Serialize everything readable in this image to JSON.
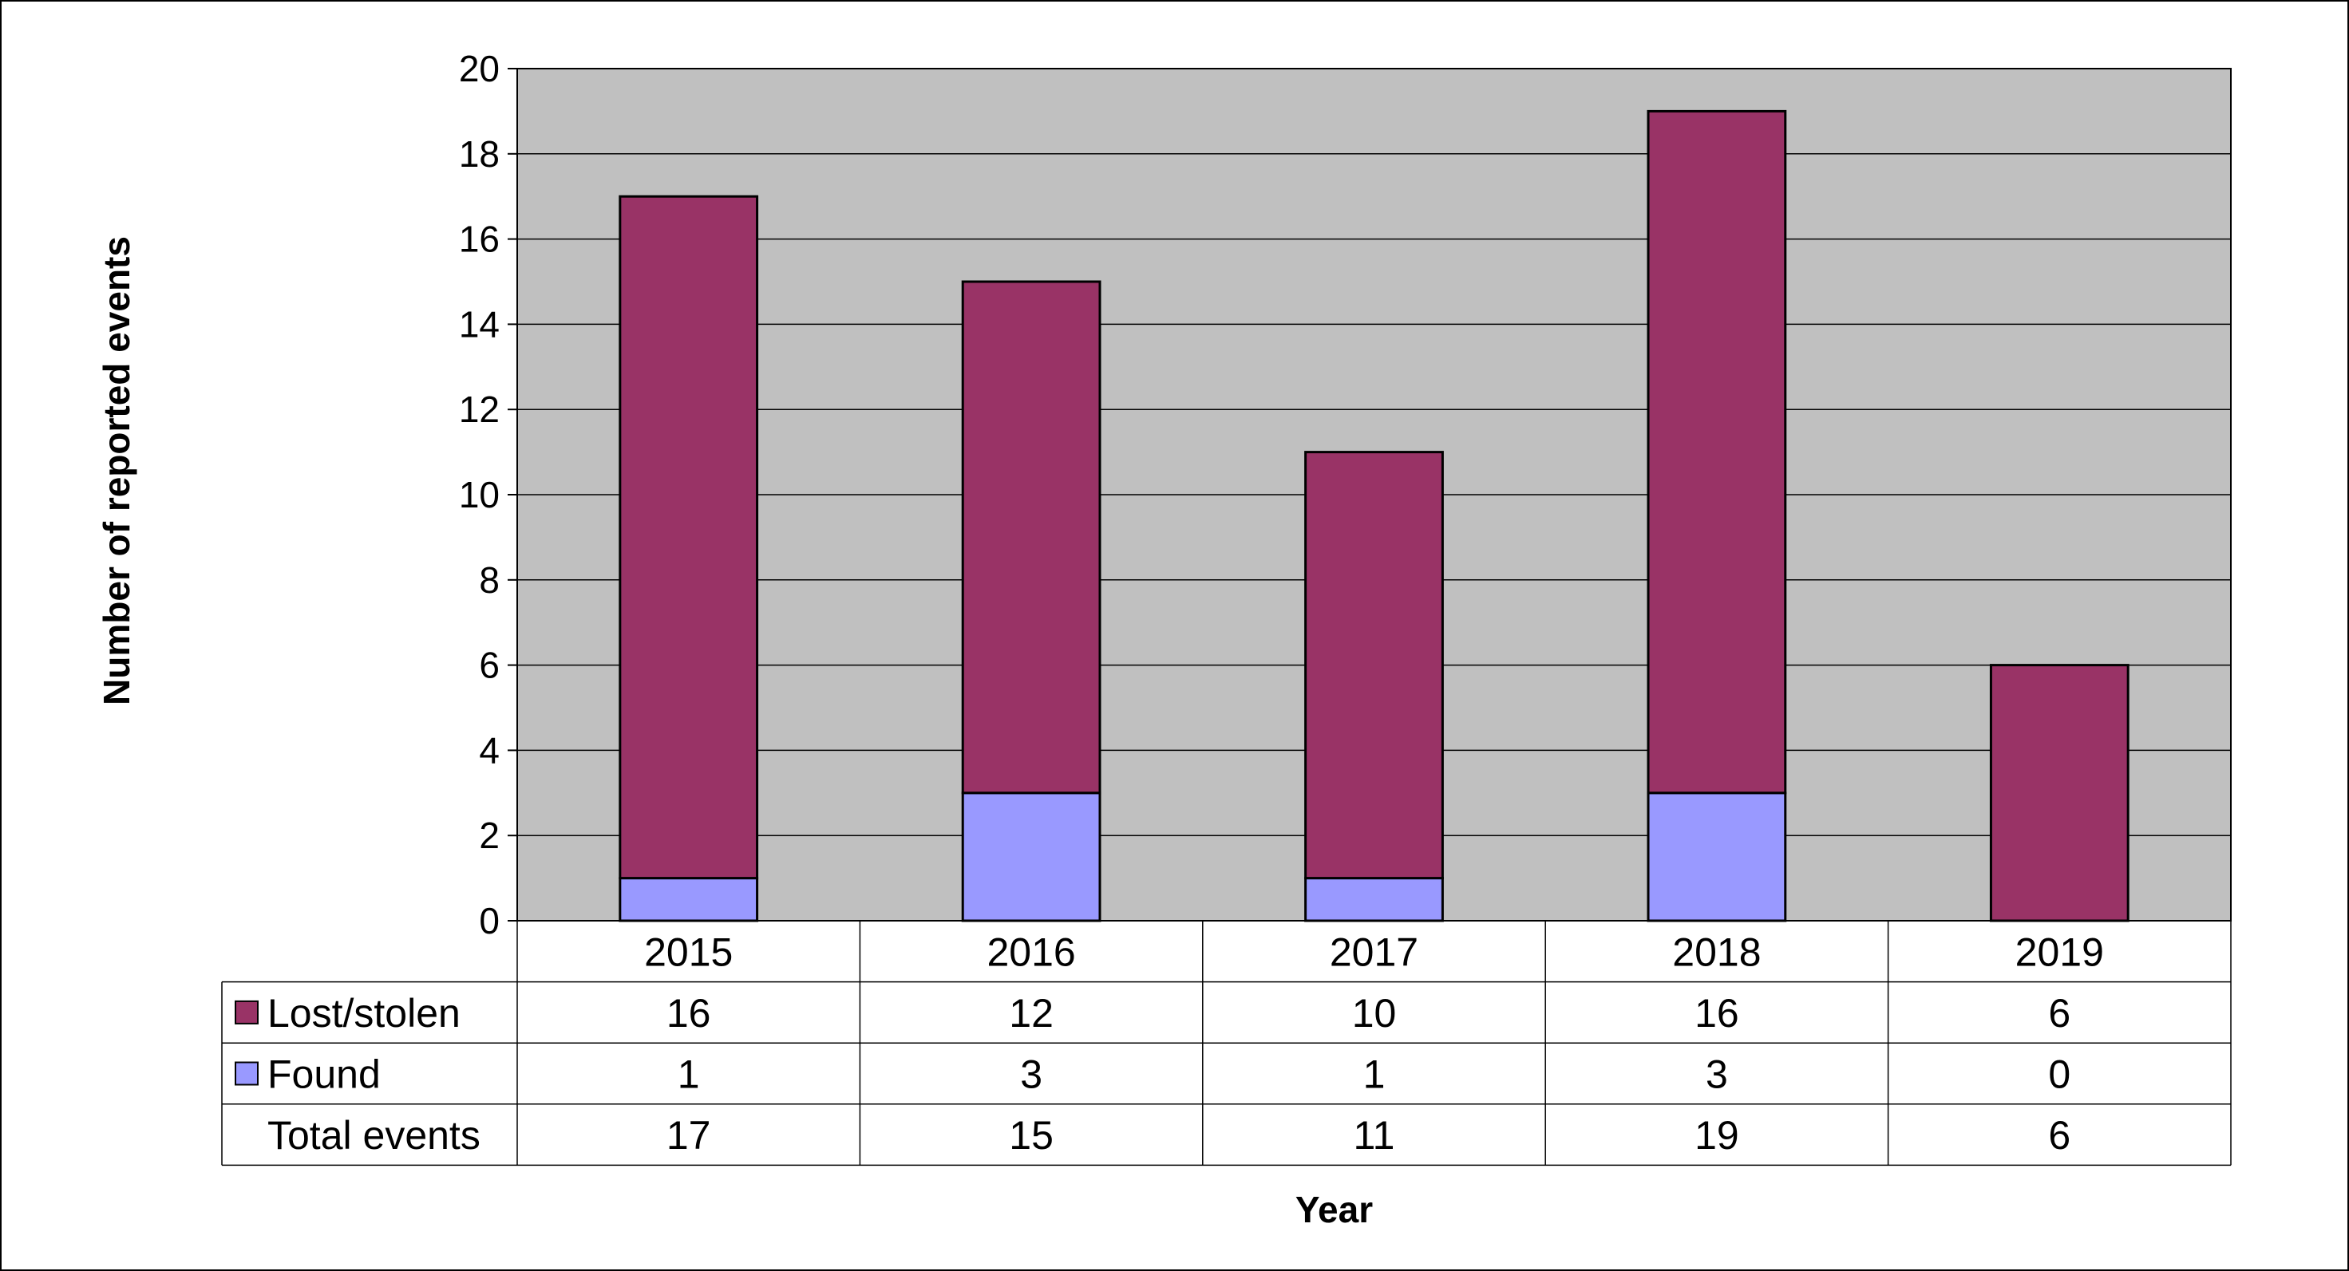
{
  "chart_data": {
    "type": "bar",
    "stacked": true,
    "categories": [
      "2015",
      "2016",
      "2017",
      "2018",
      "2019"
    ],
    "series": [
      {
        "name": "Lost/stolen",
        "values": [
          16,
          12,
          10,
          16,
          6
        ],
        "color": "#993366"
      },
      {
        "name": "Found",
        "values": [
          1,
          3,
          1,
          3,
          0
        ],
        "color": "#9999FF"
      }
    ],
    "totals_label": "Total events",
    "totals": [
      17,
      15,
      11,
      19,
      6
    ],
    "xlabel": "Year",
    "ylabel": "Number of reported events",
    "ylim": [
      0,
      20
    ],
    "yticks": [
      0,
      2,
      4,
      6,
      8,
      10,
      12,
      14,
      16,
      18,
      20
    ],
    "grid": true,
    "plot_background": "#C0C0C0",
    "legend": "data-table"
  }
}
